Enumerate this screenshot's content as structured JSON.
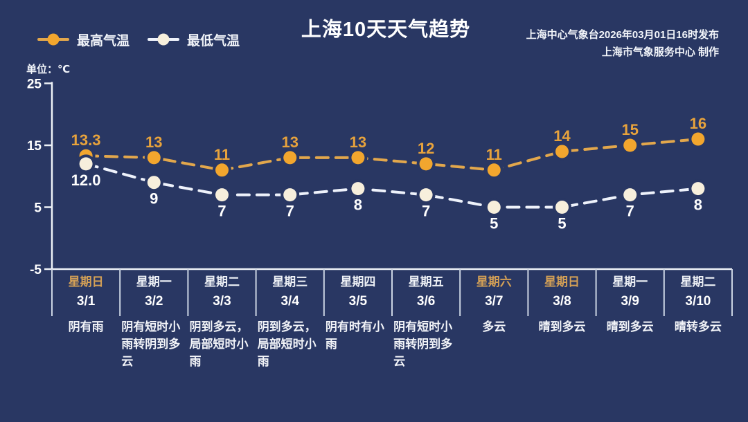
{
  "title": "上海10天天气趋势",
  "publisher": {
    "line1": "上海中心气象台2026年03月01日16时发布",
    "line2": "上海市气象服务中心  制作"
  },
  "unit_label": "单位：℃",
  "legend": {
    "high": {
      "label": "最高气温",
      "line_color": "#e2a74c",
      "marker_color": "#f2a62e"
    },
    "low": {
      "label": "最低气温",
      "line_color": "#eef2fb",
      "marker_color": "#f7efdc"
    }
  },
  "colors": {
    "background": "#293763",
    "axis": "#eef2f7",
    "separator": "#ccd5e4",
    "tick_text": "#ffffff",
    "high_value_label": "#e8a33c",
    "low_value_label": "#ffffff",
    "weekend_text": "#d4a056",
    "weekday_text": "#eef1f6",
    "date_text": "#ffffff",
    "weather_text": "#f2f4f8"
  },
  "chart_data": {
    "type": "line",
    "title": "上海10天天气趋势",
    "legend_position": "top-left",
    "grid": false,
    "y_axis": {
      "unit": "℃",
      "ticks": [
        25,
        15,
        5,
        -5
      ],
      "min": -5,
      "max": 25
    },
    "x_categories": [
      {
        "weekday": "星期日",
        "date": "3/1",
        "weather": "阴有雨",
        "weekend": true
      },
      {
        "weekday": "星期一",
        "date": "3/2",
        "weather": "阴有短时小雨转阴到多云",
        "weekend": false
      },
      {
        "weekday": "星期二",
        "date": "3/3",
        "weather": "阴到多云，局部短时小雨",
        "weekend": false
      },
      {
        "weekday": "星期三",
        "date": "3/4",
        "weather": "阴到多云，局部短时小雨",
        "weekend": false
      },
      {
        "weekday": "星期四",
        "date": "3/5",
        "weather": "阴有时有小雨",
        "weekend": false
      },
      {
        "weekday": "星期五",
        "date": "3/6",
        "weather": "阴有短时小雨转阴到多云",
        "weekend": false
      },
      {
        "weekday": "星期六",
        "date": "3/7",
        "weather": "多云",
        "weekend": true
      },
      {
        "weekday": "星期日",
        "date": "3/8",
        "weather": "晴到多云",
        "weekend": true
      },
      {
        "weekday": "星期一",
        "date": "3/9",
        "weather": "晴到多云",
        "weekend": false
      },
      {
        "weekday": "星期二",
        "date": "3/10",
        "weather": "晴转多云",
        "weekend": false
      }
    ],
    "series": [
      {
        "name": "最高气温",
        "values": [
          13.3,
          13,
          11,
          13,
          13,
          12,
          11,
          14,
          15,
          16
        ],
        "labels": [
          "13.3",
          "13",
          "11",
          "13",
          "13",
          "12",
          "11",
          "14",
          "15",
          "16"
        ]
      },
      {
        "name": "最低气温",
        "values": [
          12.0,
          9,
          7,
          7,
          8,
          7,
          5,
          5,
          7,
          8
        ],
        "labels": [
          "12.0",
          "9",
          "7",
          "7",
          "8",
          "7",
          "5",
          "5",
          "7",
          "8"
        ]
      }
    ]
  }
}
